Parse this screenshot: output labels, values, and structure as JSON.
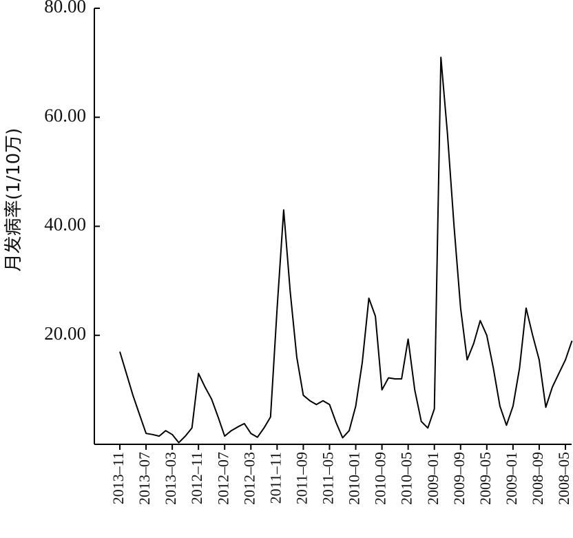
{
  "chart_data": {
    "type": "line",
    "ylabel": "月发病率(1/10万)",
    "categories": [
      "2013–11",
      null,
      null,
      null,
      "2013–07",
      null,
      null,
      null,
      "2013–03",
      null,
      null,
      null,
      "2012–11",
      null,
      null,
      null,
      "2012–07",
      null,
      null,
      null,
      "2012–03",
      null,
      null,
      null,
      "2011–11",
      null,
      null,
      null,
      "2011–09",
      null,
      null,
      null,
      "2011–05",
      null,
      null,
      null,
      "2010–01",
      null,
      null,
      null,
      "2010–09",
      null,
      null,
      null,
      "2010–05",
      null,
      null,
      null,
      "2009–01",
      null,
      null,
      null,
      "2009–09",
      null,
      null,
      null,
      "2009–05",
      null,
      null,
      null,
      "2009–01",
      null,
      null,
      null,
      "2008–09",
      null,
      null,
      null,
      "2008–05",
      null
    ],
    "values": [
      17,
      13,
      9,
      5.5,
      2,
      1.8,
      1.5,
      2.5,
      1.8,
      0.3,
      1.5,
      3,
      13,
      10.5,
      8.3,
      5,
      1.5,
      2.5,
      3.2,
      3.8,
      2,
      1.3,
      3,
      5,
      25,
      43,
      28,
      16,
      9,
      8,
      7.3,
      8,
      7.3,
      4,
      1.2,
      2.5,
      7,
      15,
      26.8,
      23.5,
      10,
      12.2,
      12,
      12,
      19.3,
      10,
      4.2,
      3,
      6.5,
      71,
      57,
      40,
      25,
      15.5,
      18.5,
      22.7,
      20,
      14,
      7,
      3.5,
      7,
      14,
      25,
      20,
      15.5,
      6.8,
      10.5,
      13,
      15.5,
      19
    ],
    "color": "#000000",
    "ylim": [
      0,
      80
    ],
    "yticks": [
      {
        "value": 20,
        "label": "20.00"
      },
      {
        "value": 40,
        "label": "40.00"
      },
      {
        "value": 60,
        "label": "60.00"
      },
      {
        "value": 80,
        "label": "80.00"
      }
    ]
  }
}
